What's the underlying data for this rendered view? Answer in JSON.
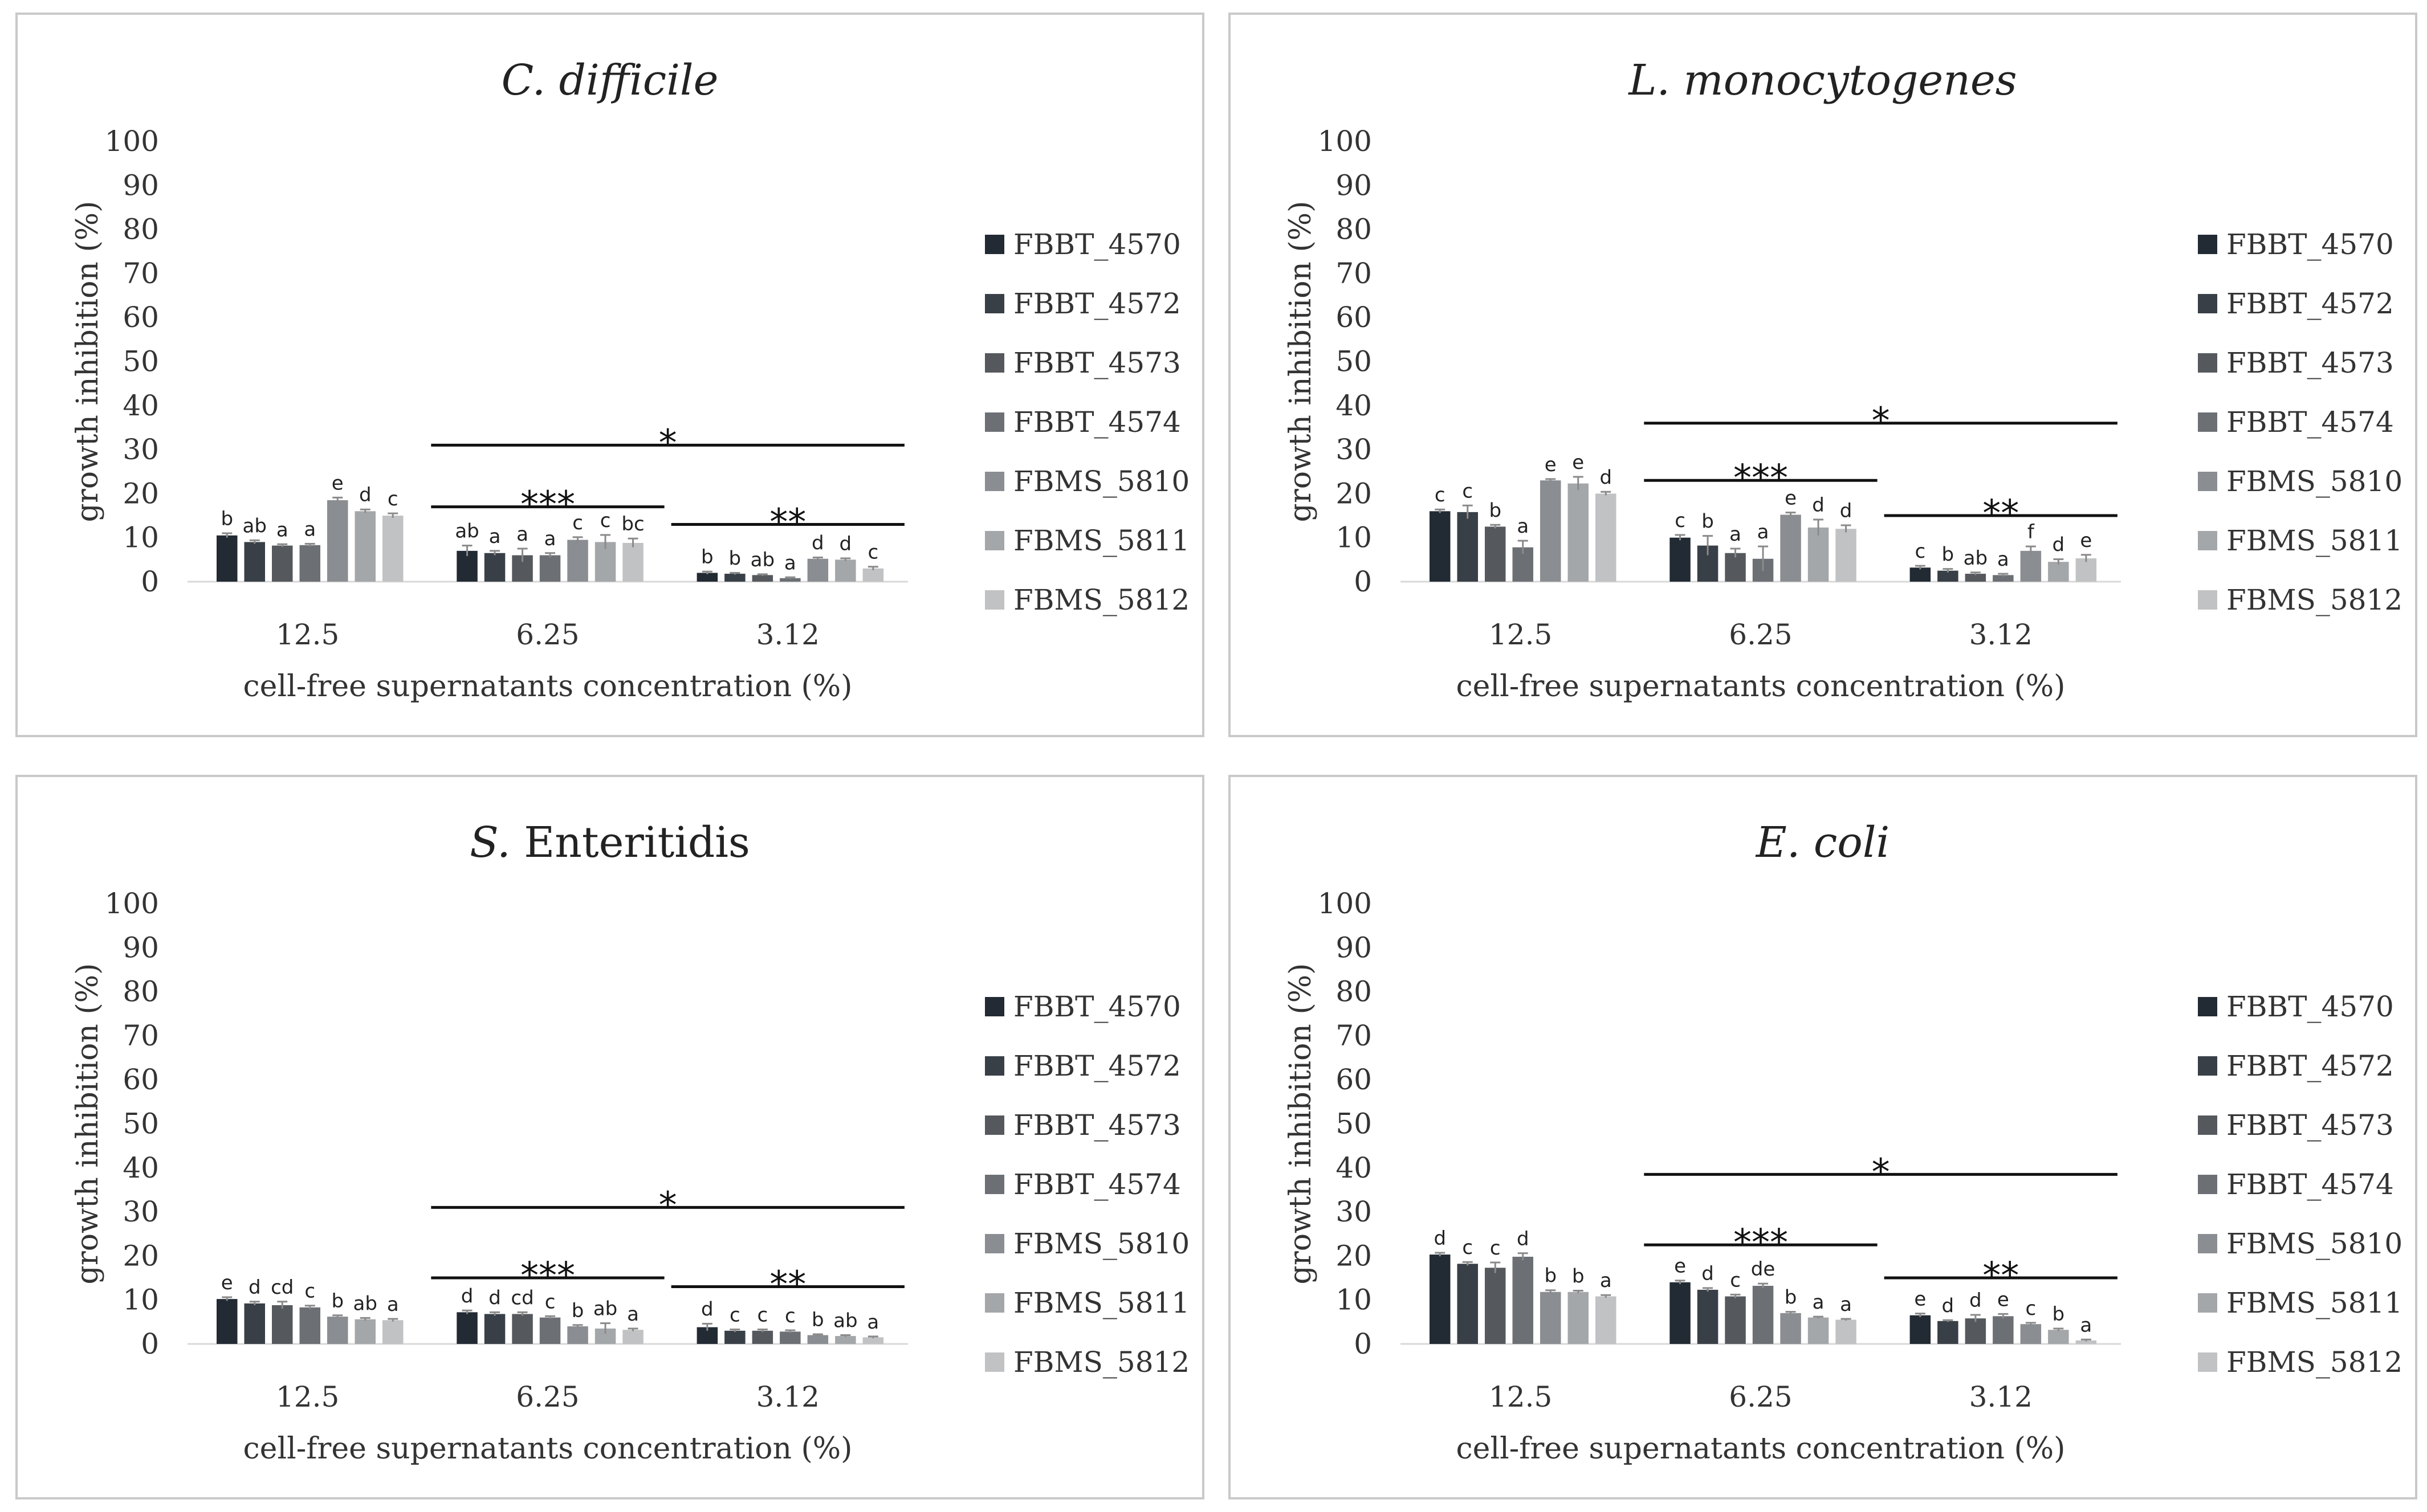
{
  "legend": [
    "FBBT_4570",
    "FBBT_4572",
    "FBBT_4573",
    "FBBT_4574",
    "FBMS_5810",
    "FBMS_5811",
    "FBMS_5812"
  ],
  "colors": [
    "#222a33",
    "#393f46",
    "#55595e",
    "#6c7075",
    "#8a8d91",
    "#a4a7aa",
    "#c0c2c4"
  ],
  "chart_data": [
    {
      "type": "bar",
      "title_prefix": "",
      "title_italic": "C. difficile",
      "title_plain": "",
      "xlabel": "cell-free supernatants concentration (%)",
      "ylabel": "growth inhibition (%)",
      "ylim": [
        0,
        100
      ],
      "yticks": [
        0,
        10,
        20,
        30,
        40,
        50,
        60,
        70,
        80,
        90,
        100
      ],
      "categories": [
        "12.5",
        "6.25",
        "3.12"
      ],
      "series": [
        {
          "name": "FBBT_4570",
          "values": [
            10.5,
            7,
            2.0
          ]
        },
        {
          "name": "FBBT_4572",
          "values": [
            9,
            6.5,
            1.8
          ]
        },
        {
          "name": "FBBT_4573",
          "values": [
            8.2,
            6,
            1.5
          ]
        },
        {
          "name": "FBBT_4574",
          "values": [
            8.3,
            6,
            0.8
          ]
        },
        {
          "name": "FBMS_5810",
          "values": [
            18.5,
            9.5,
            5.2
          ]
        },
        {
          "name": "FBMS_5811",
          "values": [
            16,
            9,
            5.0
          ]
        },
        {
          "name": "FBMS_5812",
          "values": [
            15,
            8.8,
            3.0
          ]
        }
      ],
      "errors": [
        [
          0.5,
          1.2,
          0.3
        ],
        [
          0.4,
          0.5,
          0.2
        ],
        [
          0.3,
          1.5,
          0.2
        ],
        [
          0.3,
          0.5,
          0.2
        ],
        [
          0.6,
          0.6,
          0.3
        ],
        [
          0.4,
          1.6,
          0.3
        ],
        [
          0.5,
          1.0,
          0.4
        ]
      ],
      "letters": [
        [
          "b",
          "ab",
          "a",
          "a",
          "e",
          "d",
          "c"
        ],
        [
          "ab",
          "a",
          "a",
          "a",
          "c",
          "c",
          "bc"
        ],
        [
          "b",
          "b",
          "ab",
          "a",
          "d",
          "d",
          "c"
        ]
      ],
      "significance": [
        {
          "label": "*",
          "from": 1,
          "to": 2,
          "y": 31
        },
        {
          "label": "***",
          "from": 1,
          "to": 1,
          "y": 17
        },
        {
          "label": "**",
          "from": 2,
          "to": 2,
          "y": 13
        }
      ]
    },
    {
      "type": "bar",
      "title_prefix": "",
      "title_italic": "L. monocytogenes",
      "title_plain": "",
      "xlabel": "cell-free supernatants concentration (%)",
      "ylabel": "growth inhibition (%)",
      "ylim": [
        0,
        100
      ],
      "yticks": [
        0,
        10,
        20,
        30,
        40,
        50,
        60,
        70,
        80,
        90,
        100
      ],
      "categories": [
        "12.5",
        "6.25",
        "3.12"
      ],
      "series": [
        {
          "name": "FBBT_4570",
          "values": [
            16,
            10,
            3.2
          ]
        },
        {
          "name": "FBBT_4572",
          "values": [
            15.8,
            8.2,
            2.5
          ]
        },
        {
          "name": "FBBT_4573",
          "values": [
            12.5,
            6.5,
            1.8
          ]
        },
        {
          "name": "FBBT_4574",
          "values": [
            7.8,
            5.2,
            1.5
          ]
        },
        {
          "name": "FBMS_5810",
          "values": [
            23,
            15.2,
            7
          ]
        },
        {
          "name": "FBMS_5811",
          "values": [
            22.3,
            12.3,
            4.5
          ]
        },
        {
          "name": "FBMS_5812",
          "values": [
            20,
            12,
            5.3
          ]
        }
      ],
      "errors": [
        [
          0.4,
          0.6,
          0.4
        ],
        [
          1.5,
          2.2,
          0.4
        ],
        [
          0.4,
          1.0,
          0.3
        ],
        [
          1.5,
          2.8,
          0.3
        ],
        [
          0.3,
          0.5,
          1.0
        ],
        [
          1.5,
          1.8,
          0.6
        ],
        [
          0.4,
          0.8,
          0.8
        ]
      ],
      "letters": [
        [
          "c",
          "c",
          "b",
          "a",
          "e",
          "e",
          "d"
        ],
        [
          "c",
          "b",
          "a",
          "a",
          "e",
          "d",
          "d"
        ],
        [
          "c",
          "b",
          "ab",
          "a",
          "f",
          "d",
          "e"
        ]
      ],
      "significance": [
        {
          "label": "*",
          "from": 1,
          "to": 2,
          "y": 36
        },
        {
          "label": "***",
          "from": 1,
          "to": 1,
          "y": 23
        },
        {
          "label": "**",
          "from": 2,
          "to": 2,
          "y": 15
        }
      ]
    },
    {
      "type": "bar",
      "title_prefix": "S.",
      "title_italic": "",
      "title_plain": "Enteritidis",
      "xlabel": "cell-free supernatants concentration (%)",
      "ylabel": "growth inhibition (%)",
      "ylim": [
        0,
        100
      ],
      "yticks": [
        0,
        10,
        20,
        30,
        40,
        50,
        60,
        70,
        80,
        90,
        100
      ],
      "categories": [
        "12.5",
        "6.25",
        "3.12"
      ],
      "series": [
        {
          "name": "FBBT_4570",
          "values": [
            10.2,
            7.2,
            3.8
          ]
        },
        {
          "name": "FBBT_4572",
          "values": [
            9.2,
            6.8,
            3.0
          ]
        },
        {
          "name": "FBBT_4573",
          "values": [
            8.8,
            6.8,
            3.0
          ]
        },
        {
          "name": "FBBT_4574",
          "values": [
            8.3,
            6.0,
            2.8
          ]
        },
        {
          "name": "FBMS_5810",
          "values": [
            6.2,
            4.0,
            2.0
          ]
        },
        {
          "name": "FBMS_5811",
          "values": [
            5.6,
            3.5,
            1.8
          ]
        },
        {
          "name": "FBMS_5812",
          "values": [
            5.4,
            3.2,
            1.5
          ]
        }
      ],
      "errors": [
        [
          0.4,
          0.4,
          0.8
        ],
        [
          0.4,
          0.4,
          0.3
        ],
        [
          0.8,
          0.4,
          0.3
        ],
        [
          0.4,
          0.3,
          0.3
        ],
        [
          0.3,
          0.3,
          0.2
        ],
        [
          0.3,
          1.2,
          0.2
        ],
        [
          0.3,
          0.3,
          0.2
        ]
      ],
      "letters": [
        [
          "e",
          "d",
          "cd",
          "c",
          "b",
          "ab",
          "a"
        ],
        [
          "d",
          "d",
          "cd",
          "c",
          "b",
          "ab",
          "a"
        ],
        [
          "d",
          "c",
          "c",
          "c",
          "b",
          "ab",
          "a"
        ]
      ],
      "significance": [
        {
          "label": "*",
          "from": 1,
          "to": 2,
          "y": 31
        },
        {
          "label": "***",
          "from": 1,
          "to": 1,
          "y": 15
        },
        {
          "label": "**",
          "from": 2,
          "to": 2,
          "y": 13
        }
      ]
    },
    {
      "type": "bar",
      "title_prefix": "",
      "title_italic": "E. coli",
      "title_plain": "",
      "xlabel": "cell-free supernatants concentration (%)",
      "ylabel": "growth inhibition (%)",
      "ylim": [
        0,
        100
      ],
      "yticks": [
        0,
        10,
        20,
        30,
        40,
        50,
        60,
        70,
        80,
        90,
        100
      ],
      "categories": [
        "12.5",
        "6.25",
        "3.12"
      ],
      "series": [
        {
          "name": "FBBT_4570",
          "values": [
            20.3,
            14,
            6.5
          ]
        },
        {
          "name": "FBBT_4572",
          "values": [
            18.2,
            12.3,
            5.2
          ]
        },
        {
          "name": "FBBT_4573",
          "values": [
            17.3,
            10.8,
            5.8
          ]
        },
        {
          "name": "FBBT_4574",
          "values": [
            19.8,
            13.2,
            6.3
          ]
        },
        {
          "name": "FBMS_5810",
          "values": [
            11.8,
            7,
            4.5
          ]
        },
        {
          "name": "FBMS_5811",
          "values": [
            11.8,
            6,
            3.2
          ]
        },
        {
          "name": "FBMS_5812",
          "values": [
            10.8,
            5.5,
            0.8
          ]
        }
      ],
      "errors": [
        [
          0.4,
          0.4,
          0.4
        ],
        [
          0.4,
          0.4,
          0.2
        ],
        [
          1.2,
          0.4,
          0.8
        ],
        [
          0.8,
          0.5,
          0.5
        ],
        [
          0.4,
          0.3,
          0.3
        ],
        [
          0.3,
          0.2,
          0.3
        ],
        [
          0.3,
          0.2,
          0.2
        ]
      ],
      "letters": [
        [
          "d",
          "c",
          "c",
          "d",
          "b",
          "b",
          "a"
        ],
        [
          "e",
          "d",
          "c",
          "de",
          "b",
          "a",
          "a"
        ],
        [
          "e",
          "d",
          "d",
          "e",
          "c",
          "b",
          "a"
        ]
      ],
      "significance": [
        {
          "label": "*",
          "from": 1,
          "to": 2,
          "y": 38.5
        },
        {
          "label": "***",
          "from": 1,
          "to": 1,
          "y": 22.5
        },
        {
          "label": "**",
          "from": 2,
          "to": 2,
          "y": 15
        }
      ]
    }
  ]
}
